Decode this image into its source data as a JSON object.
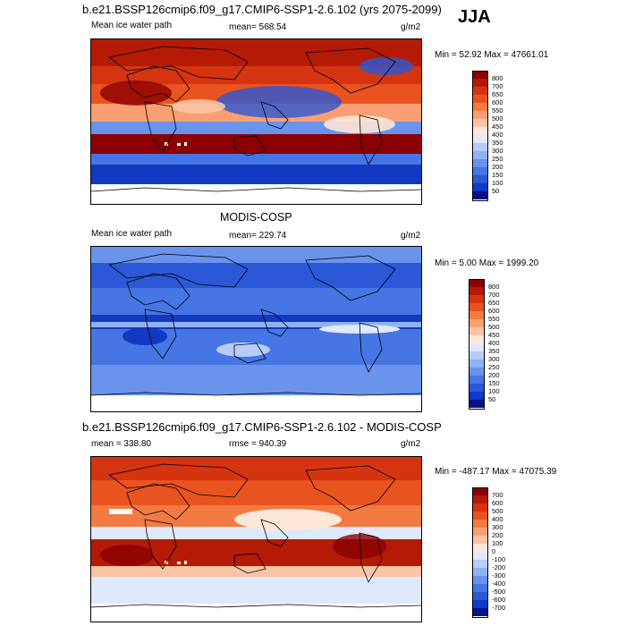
{
  "season": "JJA",
  "panels": [
    {
      "title": "b.e21.BSSP126cmip6.f09_g17.CMIP6-SSP1-2.6.102 (yrs 2075-2099)",
      "left_label": "Mean ice water path",
      "center_label": "mean= 568.54",
      "units": "g/m2",
      "minmax": "Min =  52.92 Max = 47661.01",
      "colorbar": {
        "labels": [
          "800",
          "700",
          "650",
          "600",
          "550",
          "500",
          "450",
          "400",
          "350",
          "300",
          "250",
          "200",
          "150",
          "100",
          "50"
        ],
        "colors": [
          "#8b0000",
          "#b41a06",
          "#d43510",
          "#e95320",
          "#f37a42",
          "#f99f73",
          "#fbc4a5",
          "#fde7d8",
          "#dfe9fb",
          "#b7cdf7",
          "#90b1f2",
          "#6a93ec",
          "#4676e3",
          "#2a58d6",
          "#1338c2",
          "#08108a"
        ]
      }
    },
    {
      "title": "MODIS-COSP",
      "left_label": "Mean ice water path",
      "center_label": "mean= 229.74",
      "units": "g/m2",
      "minmax": "Min =   5.00 Max = 1999.20",
      "colorbar": {
        "labels": [
          "800",
          "700",
          "650",
          "600",
          "550",
          "500",
          "450",
          "400",
          "350",
          "300",
          "250",
          "200",
          "150",
          "100",
          "50"
        ],
        "colors": [
          "#8b0000",
          "#b41a06",
          "#d43510",
          "#e95320",
          "#f37a42",
          "#f99f73",
          "#fbc4a5",
          "#fde7d8",
          "#dfe9fb",
          "#b7cdf7",
          "#90b1f2",
          "#6a93ec",
          "#4676e3",
          "#2a58d6",
          "#1338c2",
          "#08108a"
        ]
      }
    },
    {
      "title": "b.e21.BSSP126cmip6.f09_g17.CMIP6-SSP1-2.6.102 - MODIS-COSP",
      "left_label": "mean = 338.80",
      "center_label": "rmse = 940.39",
      "units": "g/m2",
      "minmax": "Min = -487.17 Max = 47075.39",
      "colorbar": {
        "labels": [
          "700",
          "600",
          "500",
          "400",
          "300",
          "200",
          "100",
          "0",
          "-100",
          "-200",
          "-300",
          "-400",
          "-500",
          "-600",
          "-700"
        ],
        "colors": [
          "#8b0000",
          "#b41a06",
          "#d43510",
          "#e95320",
          "#f37a42",
          "#f99f73",
          "#fbc4a5",
          "#fde7d8",
          "#dfe9fb",
          "#b7cdf7",
          "#90b1f2",
          "#6a93ec",
          "#4676e3",
          "#2a58d6",
          "#1338c2",
          "#08108a"
        ]
      }
    }
  ],
  "chart_data": [
    {
      "type": "heatmap",
      "title": "b.e21.BSSP126cmip6.f09_g17.CMIP6-SSP1-2.6.102 (yrs 2075-2099)",
      "variable": "Mean ice water path",
      "units": "g/m2",
      "mean": 568.54,
      "min": 52.92,
      "max": 47661.01,
      "levels": [
        50,
        100,
        150,
        200,
        250,
        300,
        350,
        400,
        450,
        500,
        550,
        600,
        650,
        700,
        800
      ]
    },
    {
      "type": "heatmap",
      "title": "MODIS-COSP",
      "variable": "Mean ice water path",
      "units": "g/m2",
      "mean": 229.74,
      "min": 5.0,
      "max": 1999.2,
      "levels": [
        50,
        100,
        150,
        200,
        250,
        300,
        350,
        400,
        450,
        500,
        550,
        600,
        650,
        700,
        800
      ]
    },
    {
      "type": "heatmap",
      "title": "b.e21.BSSP126cmip6.f09_g17.CMIP6-SSP1-2.6.102 - MODIS-COSP",
      "units": "g/m2",
      "mean": 338.8,
      "rmse": 940.39,
      "min": -487.17,
      "max": 47075.39,
      "levels": [
        -700,
        -600,
        -500,
        -400,
        -300,
        -200,
        -100,
        0,
        100,
        200,
        300,
        400,
        500,
        600,
        700
      ]
    }
  ]
}
